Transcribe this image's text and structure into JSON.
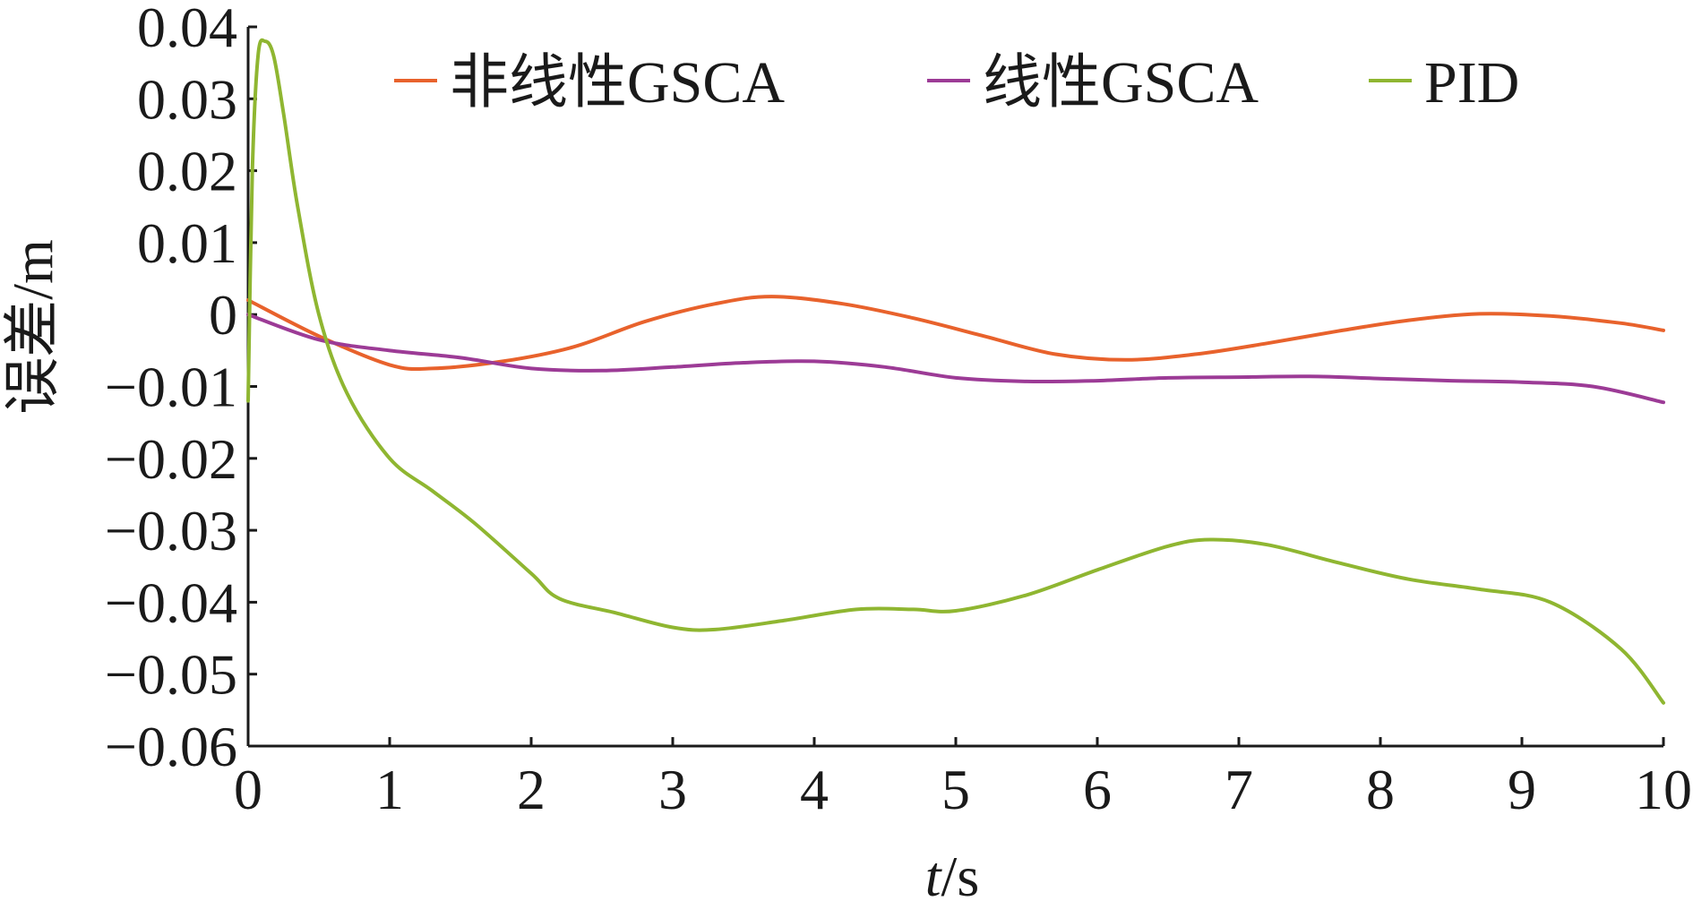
{
  "chart_data": {
    "type": "line",
    "title": "",
    "xlabel_italic": "t",
    "xlabel_rest": "/s",
    "ylabel": "误差/m",
    "xlim": [
      0,
      10
    ],
    "ylim": [
      -0.06,
      0.04
    ],
    "x_ticks": [
      0,
      1,
      2,
      3,
      4,
      5,
      6,
      7,
      8,
      9,
      10
    ],
    "x_tick_labels": [
      "0",
      "1",
      "2",
      "3",
      "4",
      "5",
      "6",
      "7",
      "8",
      "9",
      "10"
    ],
    "y_ticks": [
      0.04,
      0.03,
      0.02,
      0.01,
      0,
      -0.01,
      -0.02,
      -0.03,
      -0.04,
      -0.05,
      -0.06
    ],
    "y_tick_labels": [
      "0.04",
      "0.03",
      "0.02",
      "0.01",
      "0",
      "−0.01",
      "−0.02",
      "−0.03",
      "−0.04",
      "−0.05",
      "−0.06"
    ],
    "grid": false,
    "legend_position": "top",
    "series": [
      {
        "name": "非线性GSCA",
        "color": "#e8622c",
        "x": [
          0,
          0.5,
          1.0,
          1.3,
          1.8,
          2.3,
          2.8,
          3.3,
          3.7,
          4.2,
          4.7,
          5.2,
          5.7,
          6.2,
          6.7,
          7.2,
          7.7,
          8.2,
          8.7,
          9.2,
          9.7,
          10
        ],
        "y": [
          0.002,
          -0.003,
          -0.007,
          -0.0075,
          -0.0065,
          -0.0045,
          -0.001,
          0.0015,
          0.0025,
          0.0015,
          -0.0005,
          -0.003,
          -0.0055,
          -0.0063,
          -0.0055,
          -0.004,
          -0.0023,
          -0.0008,
          0.0001,
          -0.0002,
          -0.0012,
          -0.0022
        ]
      },
      {
        "name": "线性GSCA",
        "color": "#9c3b96",
        "x": [
          0,
          0.5,
          1.0,
          1.5,
          2.0,
          2.5,
          3.0,
          3.5,
          4.0,
          4.5,
          5.0,
          5.5,
          6.0,
          6.5,
          7.0,
          7.5,
          8.0,
          8.5,
          9.0,
          9.5,
          10
        ],
        "y": [
          0.0,
          -0.0035,
          -0.005,
          -0.006,
          -0.0075,
          -0.0078,
          -0.0073,
          -0.0067,
          -0.0065,
          -0.0073,
          -0.0088,
          -0.0093,
          -0.0092,
          -0.0088,
          -0.0087,
          -0.0086,
          -0.0089,
          -0.0092,
          -0.0094,
          -0.01,
          -0.0122
        ]
      },
      {
        "name": "PID",
        "color": "#8fb631",
        "x": [
          0,
          0.03,
          0.07,
          0.12,
          0.18,
          0.25,
          0.35,
          0.5,
          0.7,
          1.0,
          1.3,
          1.6,
          2.0,
          2.2,
          2.6,
          3.0,
          3.3,
          3.8,
          4.3,
          4.7,
          5.0,
          5.5,
          6.0,
          6.5,
          6.8,
          7.2,
          7.7,
          8.2,
          8.7,
          9.2,
          9.7,
          10.0
        ],
        "y": [
          -0.012,
          0.02,
          0.036,
          0.038,
          0.036,
          0.028,
          0.015,
          0.0,
          -0.011,
          -0.02,
          -0.0245,
          -0.029,
          -0.036,
          -0.0395,
          -0.0415,
          -0.0435,
          -0.0438,
          -0.0425,
          -0.041,
          -0.041,
          -0.0412,
          -0.039,
          -0.0355,
          -0.0322,
          -0.0313,
          -0.032,
          -0.0345,
          -0.0368,
          -0.0382,
          -0.04,
          -0.0465,
          -0.054
        ]
      }
    ]
  }
}
